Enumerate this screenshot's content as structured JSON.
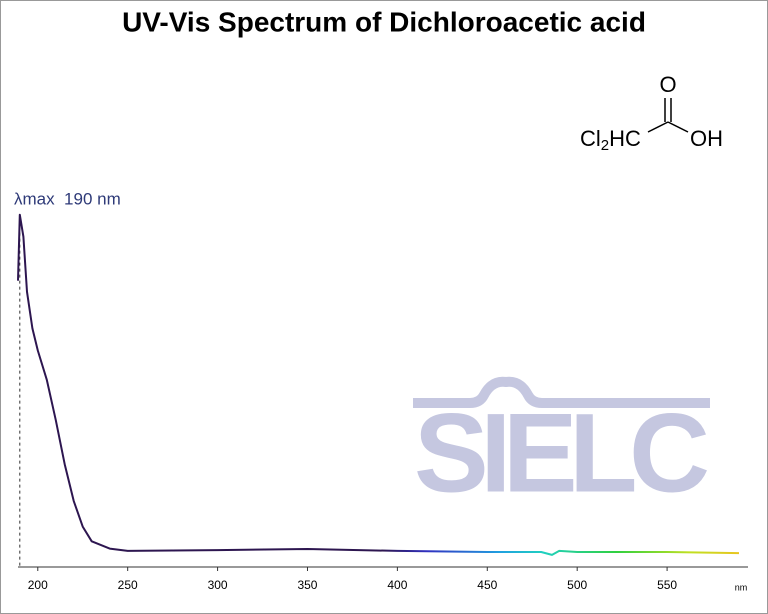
{
  "chart_data": {
    "type": "line",
    "title": "UV-Vis Spectrum of Dichloroacetic acid",
    "annotation": "λmax  190 nm",
    "annotation_x": 190,
    "xlabel": "nm",
    "x": [
      189,
      190,
      192,
      194,
      197,
      200,
      205,
      210,
      215,
      220,
      225,
      230,
      240,
      250,
      300,
      350,
      400,
      450,
      480,
      486,
      490,
      500,
      550,
      590
    ],
    "series": [
      {
        "name": "Dichloroacetic acid",
        "color": "#2d1650",
        "values": [
          0.78,
          0.96,
          0.9,
          0.75,
          0.65,
          0.59,
          0.51,
          0.4,
          0.28,
          0.18,
          0.11,
          0.07,
          0.05,
          0.044,
          0.046,
          0.049,
          0.044,
          0.041,
          0.041,
          0.033,
          0.044,
          0.041,
          0.041,
          0.038
        ]
      }
    ],
    "xlim": [
      189,
      595
    ],
    "xticks": [
      200,
      250,
      300,
      350,
      400,
      450,
      500,
      550
    ],
    "ylim": [
      0,
      1
    ]
  },
  "structure": {
    "top": "O",
    "left": "Cl",
    "sub": "2",
    "mid": "HC",
    "right": "OH"
  },
  "watermark": "SIELC"
}
